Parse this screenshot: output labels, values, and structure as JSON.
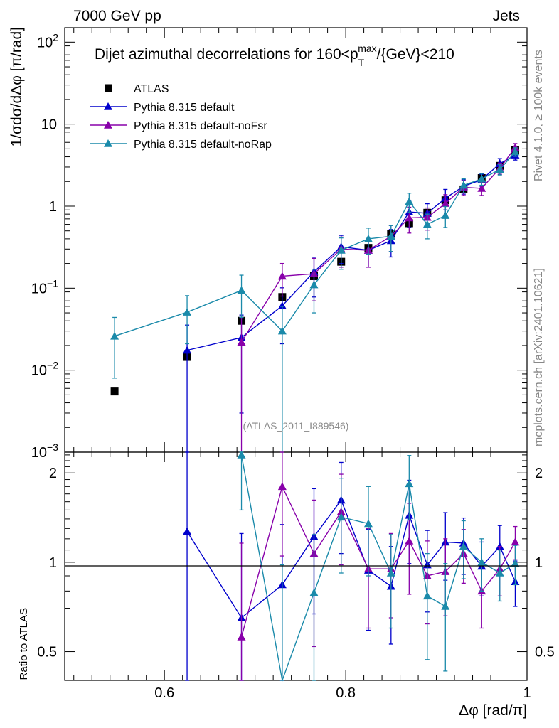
{
  "header": {
    "energy": "7000 GeV pp",
    "category": "Jets"
  },
  "side": {
    "rivet": "Rivet 4.1.0, ≥ 100k events",
    "mcplots": "mcplots.cern.ch [arXiv:2401.10621]"
  },
  "chart_data": {
    "type": "scatter",
    "title": "Dijet azimuthal decorrelations for 160<p_T^max/{GeV}<210",
    "title_parts": {
      "pre": "Dijet azimuthal decorrelations for 160<p",
      "sub": "T",
      "sup": "max",
      "post": "/{GeV}<210"
    },
    "analysis": "(ATLAS_2011_I889546)",
    "xlabel": "Δφ [rad/π]",
    "ylabel": "1/σdσ/dΔφ [π/rad]",
    "ratio_ylabel": "Ratio to ATLAS",
    "xlim": [
      0.49,
      1.0
    ],
    "ylim": [
      0.001,
      150
    ],
    "ratio_ylim": [
      0.4,
      2.35
    ],
    "x_ticks": [
      "0.6",
      "0.8",
      "1"
    ],
    "y_ticks": [
      "10^-3",
      "10^-2",
      "10^-1",
      "1",
      "10",
      "10^2"
    ],
    "ratio_ticks": [
      "0.5",
      "1",
      "2"
    ],
    "legend": [
      "ATLAS",
      "Pythia 8.315 default",
      "Pythia 8.315 default-noFsr",
      "Pythia 8.315 default-noRap"
    ],
    "series": [
      {
        "name": "ATLAS",
        "color": "#000000",
        "marker": "square",
        "x": [
          0.545,
          0.625,
          0.685,
          0.73,
          0.765,
          0.795,
          0.825,
          0.85,
          0.87,
          0.89,
          0.91,
          0.93,
          0.95,
          0.97,
          0.987
        ],
        "y": [
          0.0055,
          0.0145,
          0.04,
          0.078,
          0.14,
          0.21,
          0.31,
          0.46,
          0.62,
          0.83,
          1.18,
          1.6,
          2.2,
          3.1,
          4.8
        ],
        "err": [
          0,
          0,
          0,
          0,
          0,
          0,
          0,
          0,
          0,
          0,
          0,
          0,
          0,
          0,
          0
        ]
      },
      {
        "name": "Pythia 8.315 default",
        "color": "#0000cc",
        "marker": "triangle",
        "x": [
          0.625,
          0.685,
          0.73,
          0.765,
          0.795,
          0.825,
          0.85,
          0.87,
          0.89,
          0.91,
          0.93,
          0.95,
          0.97,
          0.987
        ],
        "y": [
          0.0175,
          0.025,
          0.061,
          0.158,
          0.32,
          0.29,
          0.38,
          0.85,
          0.82,
          1.25,
          1.75,
          2.1,
          3.3,
          4.2
        ],
        "err": [
          0.018,
          0.022,
          0.04,
          0.08,
          0.12,
          0.11,
          0.14,
          0.3,
          0.25,
          0.35,
          0.35,
          0.35,
          0.5,
          0.55
        ]
      },
      {
        "name": "Pythia 8.315 default-noFsr",
        "color": "#8800aa",
        "marker": "triangle",
        "x": [
          0.685,
          0.73,
          0.765,
          0.795,
          0.825,
          0.85,
          0.87,
          0.89,
          0.91,
          0.93,
          0.95,
          0.97,
          0.987
        ],
        "y": [
          0.022,
          0.14,
          0.15,
          0.3,
          0.29,
          0.43,
          0.72,
          0.73,
          1.08,
          1.7,
          1.65,
          2.9,
          5.2
        ],
        "err": [
          0.022,
          0.06,
          0.08,
          0.12,
          0.11,
          0.15,
          0.25,
          0.22,
          0.3,
          0.35,
          0.3,
          0.45,
          0.6
        ]
      },
      {
        "name": "Pythia 8.315 default-noRap",
        "color": "#1a8aaa",
        "marker": "triangle",
        "x": [
          0.545,
          0.625,
          0.685,
          0.73,
          0.765,
          0.795,
          0.825,
          0.85,
          0.87,
          0.89,
          0.91,
          0.93,
          0.95,
          0.97,
          0.987
        ],
        "y": [
          0.026,
          0.051,
          0.094,
          0.03,
          0.11,
          0.29,
          0.4,
          0.43,
          1.14,
          0.6,
          0.77,
          1.8,
          2.15,
          2.8,
          4.6
        ],
        "err": [
          0.018,
          0.03,
          0.05,
          0.03,
          0.06,
          0.12,
          0.14,
          0.15,
          0.3,
          0.2,
          0.22,
          0.35,
          0.35,
          0.4,
          0.55
        ]
      }
    ],
    "ratios": [
      {
        "name": "Pythia 8.315 default",
        "color": "#0000cc",
        "x": [
          0.625,
          0.685,
          0.73,
          0.765,
          0.795,
          0.825,
          0.85,
          0.87,
          0.89,
          0.91,
          0.93,
          0.95,
          0.97,
          0.987
        ],
        "y": [
          1.27,
          0.65,
          0.84,
          1.22,
          1.62,
          0.94,
          0.83,
          1.44,
          0.98,
          1.17,
          1.16,
          0.97,
          1.13,
          0.86
        ],
        "err": [
          1.2,
          0.6,
          0.5,
          0.55,
          0.55,
          0.35,
          0.3,
          0.45,
          0.3,
          0.3,
          0.25,
          0.2,
          0.2,
          0.15
        ]
      },
      {
        "name": "Pythia 8.315 default-noFsr",
        "color": "#8800aa",
        "x": [
          0.685,
          0.73,
          0.765,
          0.795,
          0.825,
          0.85,
          0.87,
          0.89,
          0.91,
          0.93,
          0.95,
          0.97,
          0.987
        ],
        "y": [
          0.56,
          1.8,
          1.07,
          1.48,
          0.95,
          0.95,
          1.18,
          0.9,
          0.93,
          1.07,
          0.8,
          0.95,
          1.17
        ],
        "err": [
          0.6,
          0.75,
          0.55,
          0.5,
          0.35,
          0.3,
          0.4,
          0.28,
          0.27,
          0.22,
          0.2,
          0.18,
          0.15
        ]
      },
      {
        "name": "Pythia 8.315 default-noRap",
        "color": "#1a8aaa",
        "x": [
          0.685,
          0.73,
          0.765,
          0.795,
          0.825,
          0.85,
          0.87,
          0.89,
          0.91,
          0.93,
          0.95,
          0.97,
          0.987
        ],
        "y": [
          2.3,
          0.38,
          0.79,
          1.42,
          1.35,
          0.92,
          1.84,
          0.77,
          0.71,
          1.13,
          1.0,
          0.92,
          0.99
        ],
        "err": [
          0.8,
          0.6,
          0.45,
          0.5,
          0.45,
          0.32,
          0.45,
          0.3,
          0.28,
          0.25,
          0.2,
          0.18,
          0.15
        ]
      }
    ]
  }
}
